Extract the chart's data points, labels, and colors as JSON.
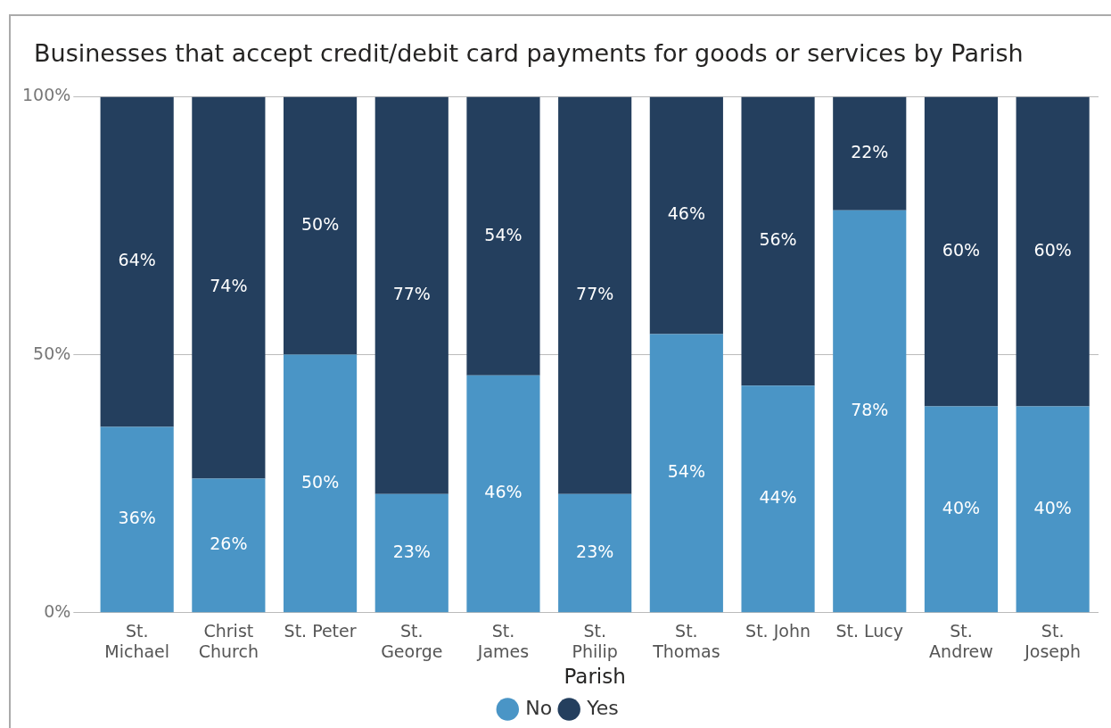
{
  "chart_data": {
    "type": "bar",
    "title": "Businesses that accept credit/debit card payments for goods or services by Parish",
    "xlabel": "Parish",
    "categories": [
      "St. Michael",
      "Christ Church",
      "St. Peter",
      "St. George",
      "St. James",
      "St. Philip",
      "St. Thomas",
      "St. John",
      "St. Lucy",
      "St. Andrew",
      "St. Joseph"
    ],
    "stacked": true,
    "series": [
      {
        "name": "No",
        "color": "#4a95c6",
        "values": [
          36,
          26,
          50,
          23,
          46,
          23,
          54,
          44,
          78,
          40,
          40
        ],
        "value_labels": [
          "36%",
          "26%",
          "50%",
          "23%",
          "46%",
          "23%",
          "54%",
          "44%",
          "78%",
          "40%",
          "40%"
        ]
      },
      {
        "name": "Yes",
        "color": "#243f5e",
        "values": [
          64,
          74,
          50,
          77,
          54,
          77,
          46,
          56,
          22,
          60,
          60
        ],
        "value_labels": [
          "64%",
          "74%",
          "50%",
          "77%",
          "54%",
          "77%",
          "46%",
          "56%",
          "22%",
          "60%",
          "60%"
        ]
      }
    ],
    "ylim": [
      0,
      100
    ],
    "yticks": [
      {
        "value": 0,
        "label": "0%"
      },
      {
        "value": 50,
        "label": "50%"
      },
      {
        "value": 100,
        "label": "100%"
      }
    ],
    "grid": "y",
    "legend": "bottom"
  }
}
